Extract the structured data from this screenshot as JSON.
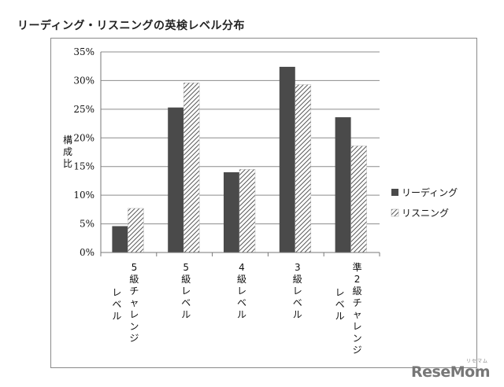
{
  "title": "リーディング・リスニングの英検レベル分布",
  "watermark": {
    "text": "ReseMom",
    "ruby": "リセマム"
  },
  "chart_data": {
    "type": "bar",
    "title": "リーディング・リスニングの英検レベル分布",
    "ylabel": "構成比",
    "xlabel": "",
    "ylim": [
      0,
      35
    ],
    "yticks": [
      0,
      5,
      10,
      15,
      20,
      25,
      30,
      35
    ],
    "ytick_labels": [
      "0%",
      "5%",
      "10%",
      "15%",
      "20%",
      "25%",
      "30%",
      "35%"
    ],
    "categories": [
      "5級チャレンジレベル",
      "5級レベル",
      "4級レベル",
      "3級レベル",
      "準2級チャレンジレベル"
    ],
    "series": [
      {
        "name": "リーディング",
        "values": [
          4.6,
          25.3,
          14.0,
          32.4,
          23.6
        ],
        "color": "#4a4a4a",
        "pattern": "solid"
      },
      {
        "name": "リスニング",
        "values": [
          7.7,
          29.6,
          14.5,
          29.3,
          18.6
        ],
        "color": "#555555",
        "pattern": "diagonal-hatch"
      }
    ],
    "grid": true,
    "legend_position": "right"
  }
}
